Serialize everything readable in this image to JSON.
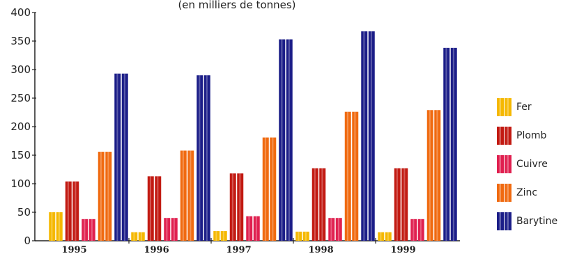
{
  "chart_data": {
    "type": "bar",
    "subtitle": "(en milliers de tonnes)",
    "xlabel": "",
    "ylabel": "",
    "ylim": [
      0,
      400
    ],
    "yticks": [
      0,
      50,
      100,
      150,
      200,
      250,
      300,
      350,
      400
    ],
    "grid": false,
    "legend_position": "right",
    "categories": [
      "1995",
      "1996",
      "1997",
      "1998",
      "1999"
    ],
    "series": [
      {
        "name": "Fer",
        "color": "#f5b800",
        "values": [
          50,
          15,
          17,
          16,
          15
        ]
      },
      {
        "name": "Plomb",
        "color": "#c21a12",
        "values": [
          104,
          113,
          118,
          127,
          127
        ]
      },
      {
        "name": "Cuivre",
        "color": "#e0204f",
        "values": [
          38,
          40,
          43,
          40,
          38
        ]
      },
      {
        "name": "Zinc",
        "color": "#f06a10",
        "values": [
          156,
          158,
          181,
          226,
          229
        ]
      },
      {
        "name": "Barytine",
        "color": "#1c1e88",
        "values": [
          293,
          290,
          353,
          367,
          338
        ]
      }
    ]
  }
}
